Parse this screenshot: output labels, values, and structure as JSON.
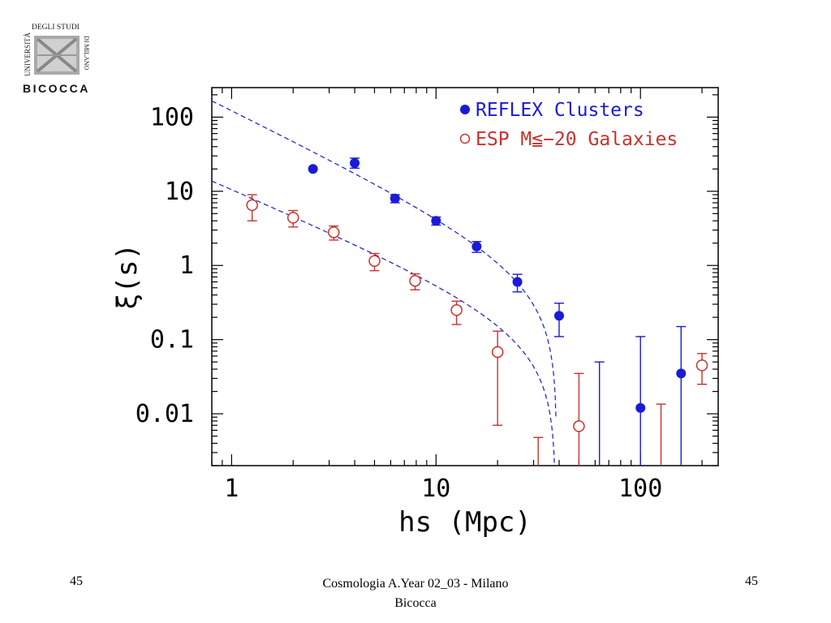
{
  "logo": {
    "line1": "UNIVERSITÀ",
    "line2": "DEGLI STUDI",
    "line3": "DI MILANO",
    "line4": "BICOCCA"
  },
  "chart_data": {
    "type": "scatter",
    "xlabel": "hs (Mpc)",
    "ylabel": "ξ(s)",
    "x_scale": "log",
    "y_scale": "log",
    "xlim": [
      0.8,
      240
    ],
    "ylim": [
      0.002,
      250
    ],
    "x_ticks": [
      {
        "v": 1,
        "label": "1"
      },
      {
        "v": 10,
        "label": "10"
      },
      {
        "v": 100,
        "label": "100"
      }
    ],
    "y_ticks": [
      {
        "v": 100,
        "label": "100"
      },
      {
        "v": 10,
        "label": "10"
      },
      {
        "v": 1,
        "label": "1"
      },
      {
        "v": 0.1,
        "label": "0.1"
      },
      {
        "v": 0.01,
        "label": "0.01"
      }
    ],
    "legend_position": "top-right",
    "series": [
      {
        "name": "REFLEX Clusters",
        "marker": "filled-circle",
        "color": "#1a1ad8",
        "points": [
          {
            "x": 2.5,
            "y": 20
          },
          {
            "x": 4.0,
            "y": 24,
            "yerr": [
              20.5,
              28
            ]
          },
          {
            "x": 6.3,
            "y": 8,
            "yerr": [
              7,
              9
            ]
          },
          {
            "x": 10,
            "y": 4,
            "yerr": [
              3.5,
              4.5
            ]
          },
          {
            "x": 15.8,
            "y": 1.8,
            "yerr": [
              1.5,
              2.1
            ]
          },
          {
            "x": 25,
            "y": 0.6,
            "yerr": [
              0.44,
              0.76
            ]
          },
          {
            "x": 40,
            "y": 0.21,
            "yerr": [
              0.11,
              0.31
            ]
          },
          {
            "x": 100,
            "y": 0.012,
            "yerr": [
              null,
              0.11
            ]
          },
          {
            "x": 158,
            "y": 0.035,
            "yerr": [
              null,
              0.15
            ]
          }
        ],
        "extra_error_bars": [
          {
            "x": 63,
            "yerr": [
              null,
              0.05
            ]
          }
        ]
      },
      {
        "name": "ESP M≦−20 Galaxies",
        "marker": "open-circle",
        "color": "#c8322c",
        "points": [
          {
            "x": 1.26,
            "y": 6.5,
            "yerr": [
              4,
              9
            ]
          },
          {
            "x": 2.0,
            "y": 4.4,
            "yerr": [
              3.3,
              5.5
            ]
          },
          {
            "x": 3.16,
            "y": 2.8,
            "yerr": [
              2.2,
              3.4
            ]
          },
          {
            "x": 5.0,
            "y": 1.15,
            "yerr": [
              0.85,
              1.45
            ]
          },
          {
            "x": 7.9,
            "y": 0.62,
            "yerr": [
              0.47,
              0.77
            ]
          },
          {
            "x": 12.6,
            "y": 0.25,
            "yerr": [
              0.16,
              0.33
            ]
          },
          {
            "x": 20,
            "y": 0.068,
            "yerr": [
              0.007,
              0.13
            ]
          },
          {
            "x": 50,
            "y": 0.0068,
            "yerr": [
              null,
              0.035
            ]
          },
          {
            "x": 200,
            "y": 0.045,
            "yerr": [
              0.025,
              0.065
            ]
          }
        ],
        "extra_error_bars": [
          {
            "x": 31.6,
            "yerr": [
              null,
              0.0048
            ]
          },
          {
            "x": 126,
            "yerr": [
              null,
              0.0135
            ]
          }
        ]
      }
    ],
    "fit_curves": [
      {
        "name": "clusters-fit",
        "style": "dashed",
        "color": "#2a2ad0",
        "amp": 125,
        "gamma": 1.35,
        "r_cut": 39
      },
      {
        "name": "galaxies-fit",
        "style": "dashed",
        "color": "#2a2ad0",
        "amp": 10.8,
        "gamma": 1.18,
        "r_cut": 38.5
      }
    ]
  },
  "footer": {
    "left": "45",
    "center_line1": "Cosmologia A.Year 02_03 - Milano",
    "center_line2": "Bicocca",
    "right": "45"
  }
}
